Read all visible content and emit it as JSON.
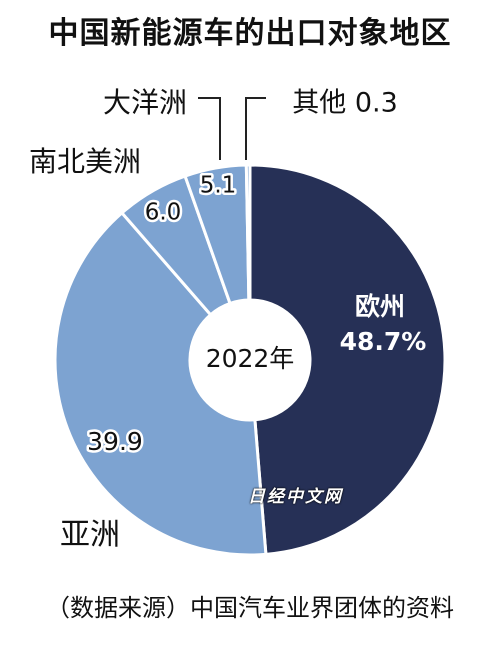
{
  "title": "中国新能源车的出口对象地区",
  "footer": "（数据来源）中国汽车业界团体的资料",
  "watermark": "日经中文网",
  "chart_data": {
    "type": "pie",
    "title": "中国新能源车的出口对象地区",
    "center_label": "2022年",
    "slices": [
      {
        "name": "欧州",
        "value": 48.7,
        "label": "48.7%",
        "color": "#263056"
      },
      {
        "name": "亚洲",
        "value": 39.9,
        "label": "39.9",
        "color": "#7da3d1"
      },
      {
        "name": "南北美洲",
        "value": 6.0,
        "label": "6.0",
        "color": "#7da3d1"
      },
      {
        "name": "大洋洲",
        "value": 5.1,
        "label": "5.1",
        "color": "#7da3d1"
      },
      {
        "name": "其他",
        "value": 0.3,
        "label": "0.3",
        "color": "#7da3d1"
      }
    ]
  }
}
